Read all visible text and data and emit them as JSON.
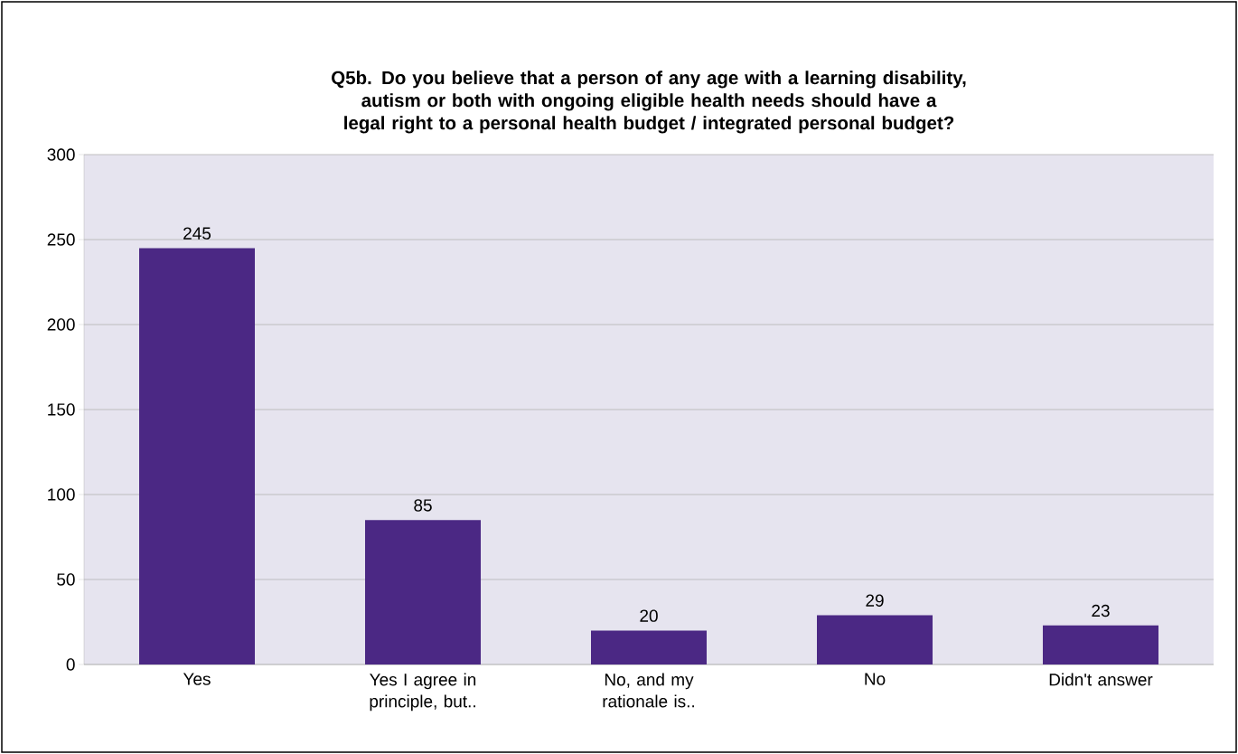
{
  "chart_data": {
    "type": "bar",
    "title": "Q5b. Do you believe that a person of any age with a learning disability, autism or both with ongoing eligible health needs should have a legal right to a personal health budget / integrated personal budget?",
    "categories": [
      "Yes",
      "Yes I agree in principle, but..",
      "No, and my rationale is..",
      "No",
      "Didn't answer"
    ],
    "values": [
      245,
      85,
      20,
      29,
      23
    ],
    "color": "#4b2884",
    "ylim": [
      0,
      300
    ],
    "yticks": [
      0,
      50,
      100,
      150,
      200,
      250,
      300
    ],
    "grid": "y",
    "data_labels": true
  }
}
